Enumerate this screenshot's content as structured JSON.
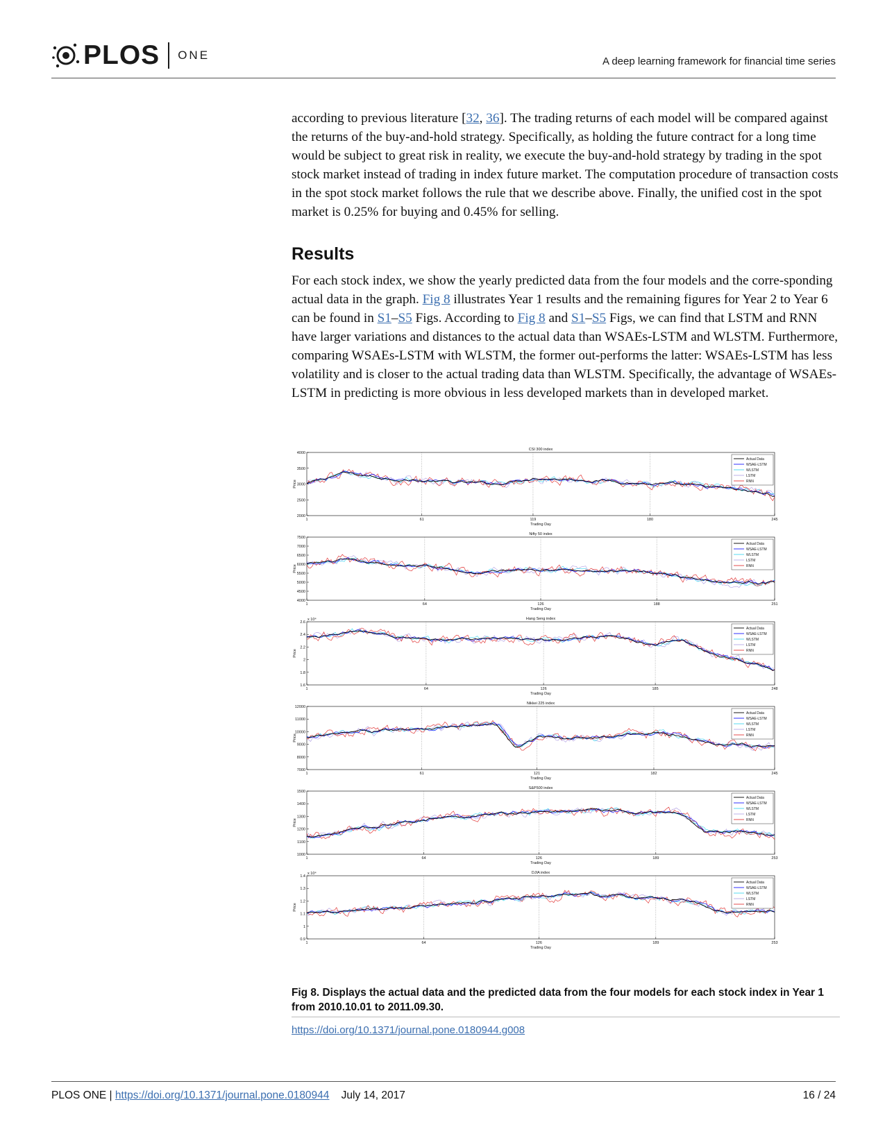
{
  "header": {
    "logo_text": "PLOS",
    "logo_journal": "ONE",
    "running_title": "A deep learning framework for financial time series"
  },
  "body": {
    "p1": {
      "t1": "according to previous literature [",
      "ref1": "32",
      "t2": ", ",
      "ref2": "36",
      "t3": "]. The trading returns of each model will be compared against the returns of the buy-and-hold strategy. Specifically, as holding the future contract for a long time would be subject to great risk in reality, we execute the buy-and-hold strategy by trading in the spot stock market instead of trading in index future market. The computation procedure of transaction costs in the spot stock market follows the rule that we describe above. Finally, the unified cost in the spot market is 0.25% for buying and 0.45% for selling."
    },
    "results_heading": "Results",
    "p2": {
      "t1": "For each stock index, we show the yearly predicted data from the four models and the corre-sponding actual data in the graph. ",
      "link_fig8": "Fig 8",
      "t2": " illustrates Year 1 results and the remaining figures for Year 2 to Year 6 can be found in ",
      "link_s1": "S1",
      "dash1": "–",
      "link_s5": "S5",
      "t3": " Figs. According to ",
      "link_fig8b": "Fig 8",
      "t4": " and ",
      "link_s1b": "S1",
      "dash2": "–",
      "link_s5b": "S5",
      "t5": " Figs, we can find that LSTM and RNN have larger variations and distances to the actual data than WSAEs-LSTM and WLSTM. Furthermore, comparing WSAEs-LSTM with WLSTM, the former out-performs the latter: WSAEs-LSTM has less volatility and is closer to the actual trading data than WLSTM. Specifically, the advantage of WSAEs-LSTM in predicting is more obvious in less developed markets than in developed market."
    }
  },
  "figure": {
    "caption": "Fig 8. Displays the actual data and the predicted data from the four models for each stock index in Year 1 from 2010.10.01 to 2011.09.30.",
    "doi": "https://doi.org/10.1371/journal.pone.0180944.g008"
  },
  "footer": {
    "journal": "PLOS ONE | ",
    "doi": "https://doi.org/10.1371/journal.pone.0180944",
    "date": "July 14, 2017",
    "page": "16 / 24"
  },
  "series_colors": {
    "Actual Data": "#000000",
    "WSAE-LSTM": "#1a1aff",
    "WLSTM": "#44d7f0",
    "LSTM": "#b7a7e6",
    "RNN": "#e23a3a"
  },
  "chart_data": [
    {
      "type": "line",
      "title": "CSI 300 index",
      "xlabel": "Trading Day",
      "ylabel": "Price",
      "xlim": [
        1,
        245
      ],
      "ylim": [
        2000,
        4000
      ],
      "xticks": [
        "1",
        "61",
        "119",
        "180",
        "245"
      ],
      "yticks": [
        "2000",
        "2500",
        "3000",
        "3500",
        "4000"
      ],
      "y_exponent": "",
      "legend": [
        "Actual Data",
        "WSAE-LSTM",
        "WLSTM",
        "LSTM",
        "RNN"
      ],
      "legend_position": "top-right",
      "grid": "vertical dotted",
      "actual_points": [
        [
          1,
          3000
        ],
        [
          20,
          3350
        ],
        [
          40,
          3200
        ],
        [
          61,
          3100
        ],
        [
          80,
          3050
        ],
        [
          100,
          3000
        ],
        [
          119,
          3200
        ],
        [
          140,
          3150
        ],
        [
          160,
          3100
        ],
        [
          180,
          3000
        ],
        [
          200,
          2950
        ],
        [
          220,
          2850
        ],
        [
          245,
          2650
        ]
      ]
    },
    {
      "type": "line",
      "title": "Nifty 50 index",
      "xlabel": "Trading Day",
      "ylabel": "Price",
      "xlim": [
        1,
        251
      ],
      "ylim": [
        4000,
        7500
      ],
      "xticks": [
        "1",
        "64",
        "126",
        "188",
        "251"
      ],
      "yticks": [
        "4000",
        "4500",
        "5000",
        "5500",
        "6000",
        "6500",
        "7000",
        "7500"
      ],
      "y_exponent": "",
      "legend": [
        "Actual Data",
        "WSAE-LSTM",
        "WLSTM",
        "LSTM",
        "RNN"
      ],
      "legend_position": "top-right",
      "grid": "vertical dotted",
      "actual_points": [
        [
          1,
          6000
        ],
        [
          20,
          6200
        ],
        [
          40,
          6000
        ],
        [
          64,
          5900
        ],
        [
          90,
          5500
        ],
        [
          126,
          5800
        ],
        [
          150,
          5600
        ],
        [
          188,
          5500
        ],
        [
          210,
          5200
        ],
        [
          230,
          5000
        ],
        [
          251,
          5000
        ]
      ]
    },
    {
      "type": "line",
      "title": "Hang Seng index",
      "xlabel": "Trading Day",
      "ylabel": "Price",
      "xlim": [
        1,
        248
      ],
      "ylim": [
        1.6,
        2.6
      ],
      "xticks": [
        "1",
        "64",
        "126",
        "185",
        "248"
      ],
      "yticks": [
        "1.6",
        "1.8",
        "2",
        "2.2",
        "2.4",
        "2.6"
      ],
      "y_exponent": "x 10⁴",
      "legend": [
        "Actual Data",
        "WSAE-LSTM",
        "WLSTM",
        "LSTM",
        "RNN"
      ],
      "legend_position": "top-right",
      "grid": "vertical dotted",
      "actual_points": [
        [
          1,
          2.35
        ],
        [
          30,
          2.45
        ],
        [
          64,
          2.3
        ],
        [
          100,
          2.35
        ],
        [
          126,
          2.3
        ],
        [
          160,
          2.35
        ],
        [
          185,
          2.25
        ],
        [
          200,
          2.3
        ],
        [
          215,
          2.1
        ],
        [
          230,
          2.0
        ],
        [
          248,
          1.85
        ]
      ]
    },
    {
      "type": "line",
      "title": "Nikkei 225 index",
      "xlabel": "Trading Day",
      "ylabel": "Price",
      "xlim": [
        1,
        245
      ],
      "ylim": [
        7000,
        12000
      ],
      "xticks": [
        "1",
        "61",
        "121",
        "182",
        "245"
      ],
      "yticks": [
        "7000",
        "8000",
        "9000",
        "10000",
        "11000",
        "12000"
      ],
      "y_exponent": "",
      "legend": [
        "Actual Data",
        "WSAE-LSTM",
        "WLSTM",
        "LSTM",
        "RNN"
      ],
      "legend_position": "top-right",
      "grid": "vertical dotted",
      "actual_points": [
        [
          1,
          9500
        ],
        [
          30,
          10000
        ],
        [
          61,
          10300
        ],
        [
          100,
          10500
        ],
        [
          110,
          8700
        ],
        [
          121,
          9500
        ],
        [
          160,
          9600
        ],
        [
          182,
          10000
        ],
        [
          210,
          9200
        ],
        [
          245,
          8800
        ]
      ]
    },
    {
      "type": "line",
      "title": "S&P500 index",
      "xlabel": "Trading Day",
      "ylabel": "Price",
      "xlim": [
        1,
        253
      ],
      "ylim": [
        1000,
        1500
      ],
      "xticks": [
        "1",
        "64",
        "126",
        "189",
        "253"
      ],
      "yticks": [
        "1000",
        "1100",
        "1200",
        "1300",
        "1400",
        "1500"
      ],
      "y_exponent": "",
      "legend": [
        "Actual Data",
        "WSAE-LSTM",
        "WLSTM",
        "LSTM",
        "RNN"
      ],
      "legend_position": "top-right",
      "grid": "vertical dotted",
      "actual_points": [
        [
          1,
          1140
        ],
        [
          40,
          1220
        ],
        [
          64,
          1280
        ],
        [
          100,
          1320
        ],
        [
          126,
          1330
        ],
        [
          150,
          1350
        ],
        [
          189,
          1330
        ],
        [
          205,
          1300
        ],
        [
          215,
          1180
        ],
        [
          235,
          1190
        ],
        [
          253,
          1150
        ]
      ]
    },
    {
      "type": "line",
      "title": "DJIA index",
      "xlabel": "Trading Day",
      "ylabel": "Price",
      "xlim": [
        1,
        253
      ],
      "ylim": [
        0.9,
        1.4
      ],
      "xticks": [
        "1",
        "64",
        "126",
        "189",
        "253"
      ],
      "yticks": [
        "0.9",
        "1",
        "1.1",
        "1.2",
        "1.3",
        "1.4"
      ],
      "y_exponent": "x 10⁴",
      "legend": [
        "Actual Data",
        "WSAE-LSTM",
        "WLSTM",
        "LSTM",
        "RNN"
      ],
      "legend_position": "top-right",
      "grid": "vertical dotted",
      "actual_points": [
        [
          1,
          1.1
        ],
        [
          40,
          1.13
        ],
        [
          64,
          1.16
        ],
        [
          100,
          1.2
        ],
        [
          126,
          1.24
        ],
        [
          150,
          1.25
        ],
        [
          189,
          1.22
        ],
        [
          210,
          1.2
        ],
        [
          220,
          1.12
        ],
        [
          235,
          1.12
        ],
        [
          253,
          1.12
        ]
      ]
    }
  ]
}
